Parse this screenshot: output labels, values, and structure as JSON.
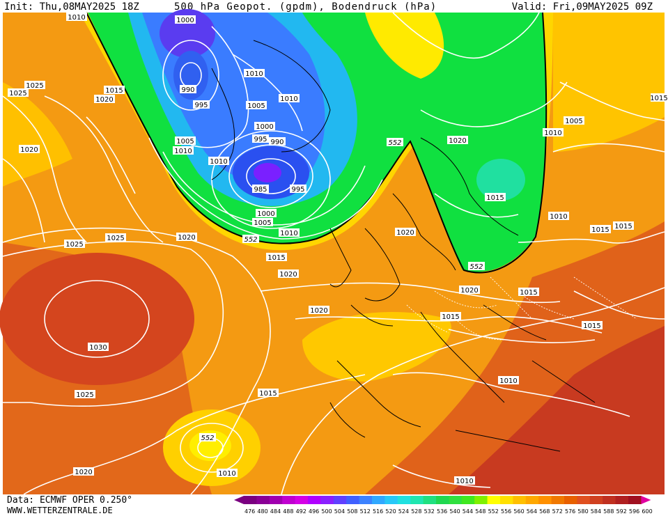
{
  "header": {
    "init": "Init: Thu,08MAY2025 18Z",
    "title": "500 hPa Geopot. (gpdm), Bodendruck (hPa)",
    "valid": "Valid: Fri,09MAY2025 09Z"
  },
  "footer": {
    "source": "Data: ECMWF OPER 0.250°",
    "site": "WWW.WETTERZENTRALE.DE"
  },
  "legend": {
    "values": [
      "476",
      "480",
      "484",
      "488",
      "492",
      "496",
      "500",
      "504",
      "508",
      "512",
      "516",
      "520",
      "524",
      "528",
      "532",
      "536",
      "540",
      "544",
      "548",
      "552",
      "556",
      "560",
      "564",
      "568",
      "572",
      "576",
      "580",
      "584",
      "588",
      "592",
      "596",
      "600"
    ],
    "colors": [
      "#7a0080",
      "#8a0096",
      "#a000b0",
      "#c000d0",
      "#d400e6",
      "#b000ff",
      "#8a20ff",
      "#6040ff",
      "#4060ff",
      "#3c82ff",
      "#30a8ff",
      "#28c8f8",
      "#20e0e0",
      "#20e6b0",
      "#20e080",
      "#20d850",
      "#30e040",
      "#40e820",
      "#80f000",
      "#ffff00",
      "#ffe000",
      "#ffc000",
      "#ffa800",
      "#ff9000",
      "#f07800",
      "#e86000",
      "#e05020",
      "#d04020",
      "#c03020",
      "#b02020",
      "#a01020",
      "#e000a0"
    ]
  },
  "map_labels": {
    "p1000a": "1000",
    "p1010a": "1010",
    "p1025a": "1025",
    "p1025b": "1025",
    "p1015a": "1015",
    "p1020a": "1020",
    "p1020b": "1020",
    "p990a": "990",
    "p995a": "995",
    "p1005a": "1005",
    "p1010b": "1010",
    "p1010c": "1010",
    "p1005b": "1005",
    "p1000b": "1000",
    "p995b": "995",
    "p990b": "990",
    "p1010d": "1010",
    "p985": "985",
    "p995c": "995",
    "p1000c": "1000",
    "p1005c": "1005",
    "p1010e": "1010",
    "p1020c": "1020",
    "p1010f": "1010",
    "p1005d": "1005",
    "p1020d": "1020",
    "p1015b": "1015",
    "p1010g": "1010",
    "p1015c": "1015",
    "p1015d": "1015",
    "p1015e": "1015",
    "p1025c": "1025",
    "p1025d": "1025",
    "p1020e": "1020",
    "p1015f": "1015",
    "p1020f": "1020",
    "p1020g": "1020",
    "p1020h": "1020",
    "p1015g": "1015",
    "p1015h": "1015",
    "p1015i": "1015",
    "p1030": "1030",
    "p1025e": "1025",
    "p1015j": "1015",
    "p1010h": "1010",
    "p1020i": "1020",
    "p1010i": "1010",
    "p1010j": "1010",
    "p1010k": "1010",
    "g552a": "552",
    "g552b": "552",
    "g552c": "552",
    "g552d": "552"
  }
}
